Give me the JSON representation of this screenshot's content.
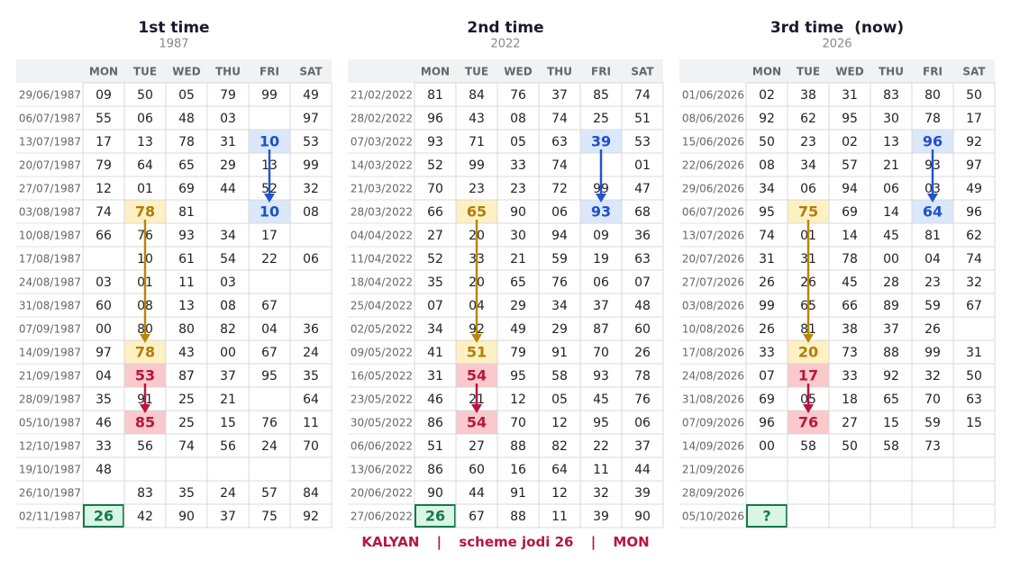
{
  "panels": [
    {
      "title": "1st time",
      "year": "1987",
      "headers": [
        "MON",
        "TUE",
        "WED",
        "THU",
        "FRI",
        "SAT"
      ],
      "rows": [
        {
          "date": "29/06/1987",
          "cells": [
            "09",
            "50",
            "05",
            "79",
            "99",
            "49"
          ]
        },
        {
          "date": "06/07/1987",
          "cells": [
            "55",
            "06",
            "48",
            "03",
            null,
            "97"
          ]
        },
        {
          "date": "13/07/1987",
          "cells": [
            "17",
            "13",
            "78",
            "31",
            "10",
            "53"
          ]
        },
        {
          "date": "20/07/1987",
          "cells": [
            "79",
            "64",
            "65",
            "29",
            "13",
            "99"
          ]
        },
        {
          "date": "27/07/1987",
          "cells": [
            "12",
            "01",
            "69",
            "44",
            "52",
            "32"
          ]
        },
        {
          "date": "03/08/1987",
          "cells": [
            "74",
            "78",
            "81",
            null,
            "10",
            "08"
          ]
        },
        {
          "date": "10/08/1987",
          "cells": [
            "66",
            "76",
            "93",
            "34",
            "17",
            null
          ]
        },
        {
          "date": "17/08/1987",
          "cells": [
            null,
            "10",
            "61",
            "54",
            "22",
            "06"
          ]
        },
        {
          "date": "24/08/1987",
          "cells": [
            "03",
            "01",
            "11",
            "03",
            null,
            null
          ]
        },
        {
          "date": "31/08/1987",
          "cells": [
            "60",
            "08",
            "13",
            "08",
            "67",
            null
          ]
        },
        {
          "date": "07/09/1987",
          "cells": [
            "00",
            "80",
            "80",
            "82",
            "04",
            "36"
          ]
        },
        {
          "date": "14/09/1987",
          "cells": [
            "97",
            "78",
            "43",
            "00",
            "67",
            "24"
          ]
        },
        {
          "date": "21/09/1987",
          "cells": [
            "04",
            "53",
            "87",
            "37",
            "95",
            "35"
          ]
        },
        {
          "date": "28/09/1987",
          "cells": [
            "35",
            "91",
            "25",
            "21",
            null,
            "64"
          ]
        },
        {
          "date": "05/10/1987",
          "cells": [
            "46",
            "85",
            "25",
            "15",
            "76",
            "11"
          ]
        },
        {
          "date": "12/10/1987",
          "cells": [
            "33",
            "56",
            "74",
            "56",
            "24",
            "70"
          ]
        },
        {
          "date": "19/10/1987",
          "cells": [
            "48",
            null,
            null,
            null,
            null,
            null
          ]
        },
        {
          "date": "26/10/1987",
          "cells": [
            null,
            "83",
            "35",
            "24",
            "57",
            "84"
          ]
        },
        {
          "date": "02/11/1987",
          "cells": [
            "26",
            "42",
            "90",
            "37",
            "75",
            "92"
          ]
        }
      ]
    },
    {
      "title": "2nd time",
      "year": "2022",
      "headers": [
        "MON",
        "TUE",
        "WED",
        "THU",
        "FRI",
        "SAT"
      ],
      "rows": [
        {
          "date": "21/02/2022",
          "cells": [
            "81",
            "84",
            "76",
            "37",
            "85",
            "74"
          ]
        },
        {
          "date": "28/02/2022",
          "cells": [
            "96",
            "43",
            "08",
            "74",
            "25",
            "51"
          ]
        },
        {
          "date": "07/03/2022",
          "cells": [
            "93",
            "71",
            "05",
            "63",
            "39",
            "53"
          ]
        },
        {
          "date": "14/03/2022",
          "cells": [
            "52",
            "99",
            "33",
            "74",
            null,
            "01"
          ]
        },
        {
          "date": "21/03/2022",
          "cells": [
            "70",
            "23",
            "23",
            "72",
            "99",
            "47"
          ]
        },
        {
          "date": "28/03/2022",
          "cells": [
            "66",
            "65",
            "90",
            "06",
            "93",
            "68"
          ]
        },
        {
          "date": "04/04/2022",
          "cells": [
            "27",
            "20",
            "30",
            "94",
            "09",
            "36"
          ]
        },
        {
          "date": "11/04/2022",
          "cells": [
            "52",
            "33",
            "21",
            "59",
            "19",
            "63"
          ]
        },
        {
          "date": "18/04/2022",
          "cells": [
            "35",
            "20",
            "65",
            "76",
            "06",
            "07"
          ]
        },
        {
          "date": "25/04/2022",
          "cells": [
            "07",
            "04",
            "29",
            "34",
            "37",
            "48"
          ]
        },
        {
          "date": "02/05/2022",
          "cells": [
            "34",
            "92",
            "49",
            "29",
            "87",
            "60"
          ]
        },
        {
          "date": "09/05/2022",
          "cells": [
            "41",
            "51",
            "79",
            "91",
            "70",
            "26"
          ]
        },
        {
          "date": "16/05/2022",
          "cells": [
            "31",
            "54",
            "95",
            "58",
            "93",
            "78"
          ]
        },
        {
          "date": "23/05/2022",
          "cells": [
            "46",
            "21",
            "12",
            "05",
            "45",
            "76"
          ]
        },
        {
          "date": "30/05/2022",
          "cells": [
            "86",
            "54",
            "70",
            "12",
            "95",
            "06"
          ]
        },
        {
          "date": "06/06/2022",
          "cells": [
            "51",
            "27",
            "88",
            "82",
            "22",
            "37"
          ]
        },
        {
          "date": "13/06/2022",
          "cells": [
            "86",
            "60",
            "16",
            "64",
            "11",
            "44"
          ]
        },
        {
          "date": "20/06/2022",
          "cells": [
            "90",
            "44",
            "91",
            "12",
            "32",
            "39"
          ]
        },
        {
          "date": "27/06/2022",
          "cells": [
            "26",
            "67",
            "88",
            "11",
            "39",
            "90"
          ]
        }
      ]
    },
    {
      "title": "3rd time  (now)",
      "year": "2026",
      "headers": [
        "MON",
        "TUE",
        "WED",
        "THU",
        "FRI",
        "SAT"
      ],
      "rows": [
        {
          "date": "01/06/2026",
          "cells": [
            "02",
            "38",
            "31",
            "83",
            "80",
            "50"
          ]
        },
        {
          "date": "08/06/2026",
          "cells": [
            "92",
            "62",
            "95",
            "30",
            "78",
            "17"
          ]
        },
        {
          "date": "15/06/2026",
          "cells": [
            "50",
            "23",
            "02",
            "13",
            "96",
            "92"
          ]
        },
        {
          "date": "22/06/2026",
          "cells": [
            "08",
            "34",
            "57",
            "21",
            "93",
            "97"
          ]
        },
        {
          "date": "29/06/2026",
          "cells": [
            "34",
            "06",
            "94",
            "06",
            "03",
            "49"
          ]
        },
        {
          "date": "06/07/2026",
          "cells": [
            "95",
            "75",
            "69",
            "14",
            "64",
            "96"
          ]
        },
        {
          "date": "13/07/2026",
          "cells": [
            "74",
            "01",
            "14",
            "45",
            "81",
            "62"
          ]
        },
        {
          "date": "20/07/2026",
          "cells": [
            "31",
            "31",
            "78",
            "00",
            "04",
            "74"
          ]
        },
        {
          "date": "27/07/2026",
          "cells": [
            "26",
            "26",
            "45",
            "28",
            "23",
            "32"
          ]
        },
        {
          "date": "03/08/2026",
          "cells": [
            "99",
            "65",
            "66",
            "89",
            "59",
            "67"
          ]
        },
        {
          "date": "10/08/2026",
          "cells": [
            "26",
            "81",
            "38",
            "37",
            "26",
            null
          ]
        },
        {
          "date": "17/08/2026",
          "cells": [
            "33",
            "20",
            "73",
            "88",
            "99",
            "31"
          ]
        },
        {
          "date": "24/08/2026",
          "cells": [
            "07",
            "17",
            "33",
            "92",
            "32",
            "50"
          ]
        },
        {
          "date": "31/08/2026",
          "cells": [
            "69",
            "05",
            "18",
            "65",
            "70",
            "63"
          ]
        },
        {
          "date": "07/09/2026",
          "cells": [
            "96",
            "76",
            "27",
            "15",
            "59",
            "15"
          ]
        },
        {
          "date": "14/09/2026",
          "cells": [
            "00",
            "58",
            "50",
            "58",
            "73",
            null
          ]
        },
        {
          "date": "21/09/2026",
          "cells": [
            null,
            null,
            null,
            null,
            null,
            null
          ]
        },
        {
          "date": "28/09/2026",
          "cells": [
            null,
            null,
            null,
            null,
            null,
            null
          ]
        },
        {
          "date": "05/10/2026",
          "cells": [
            "?",
            null,
            null,
            null,
            null,
            null
          ]
        }
      ]
    }
  ],
  "footer": {
    "market": "KALYAN",
    "separator": "|",
    "scheme": "scheme jodi 26",
    "day": "MON"
  }
}
